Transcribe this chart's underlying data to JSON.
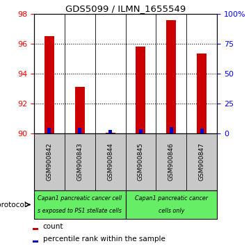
{
  "title": "GDS5099 / ILMN_1655549",
  "samples": [
    "GSM900842",
    "GSM900843",
    "GSM900844",
    "GSM900845",
    "GSM900846",
    "GSM900847"
  ],
  "count_values": [
    96.5,
    93.1,
    90.05,
    95.8,
    97.6,
    95.35
  ],
  "percentile_values": [
    90.38,
    90.38,
    90.22,
    90.28,
    90.42,
    90.32
  ],
  "ylim_left": [
    90,
    98
  ],
  "ylim_right": [
    0,
    100
  ],
  "yticks_left": [
    90,
    92,
    94,
    96,
    98
  ],
  "yticks_right": [
    0,
    25,
    50,
    75,
    100
  ],
  "ytick_labels_right": [
    "0",
    "25",
    "50",
    "75",
    "100%"
  ],
  "bar_color_red": "#cc0000",
  "bar_color_blue": "#0000cc",
  "group1_color": "#66ee66",
  "group2_color": "#66ee66",
  "label_bg_color": "#c8c8c8",
  "group1_label_line1": "Capan1 pancreatic cancer cell",
  "group1_label_line2": "s exposed to PS1 stellate cells",
  "group2_label_line1": "Capan1 pancreatic cancer",
  "group2_label_line2": "cells only",
  "legend_red_label": "count",
  "legend_blue_label": "percentile rank within the sample",
  "protocol_label": "protocol",
  "red_bar_width": 0.32,
  "blue_bar_width": 0.12
}
